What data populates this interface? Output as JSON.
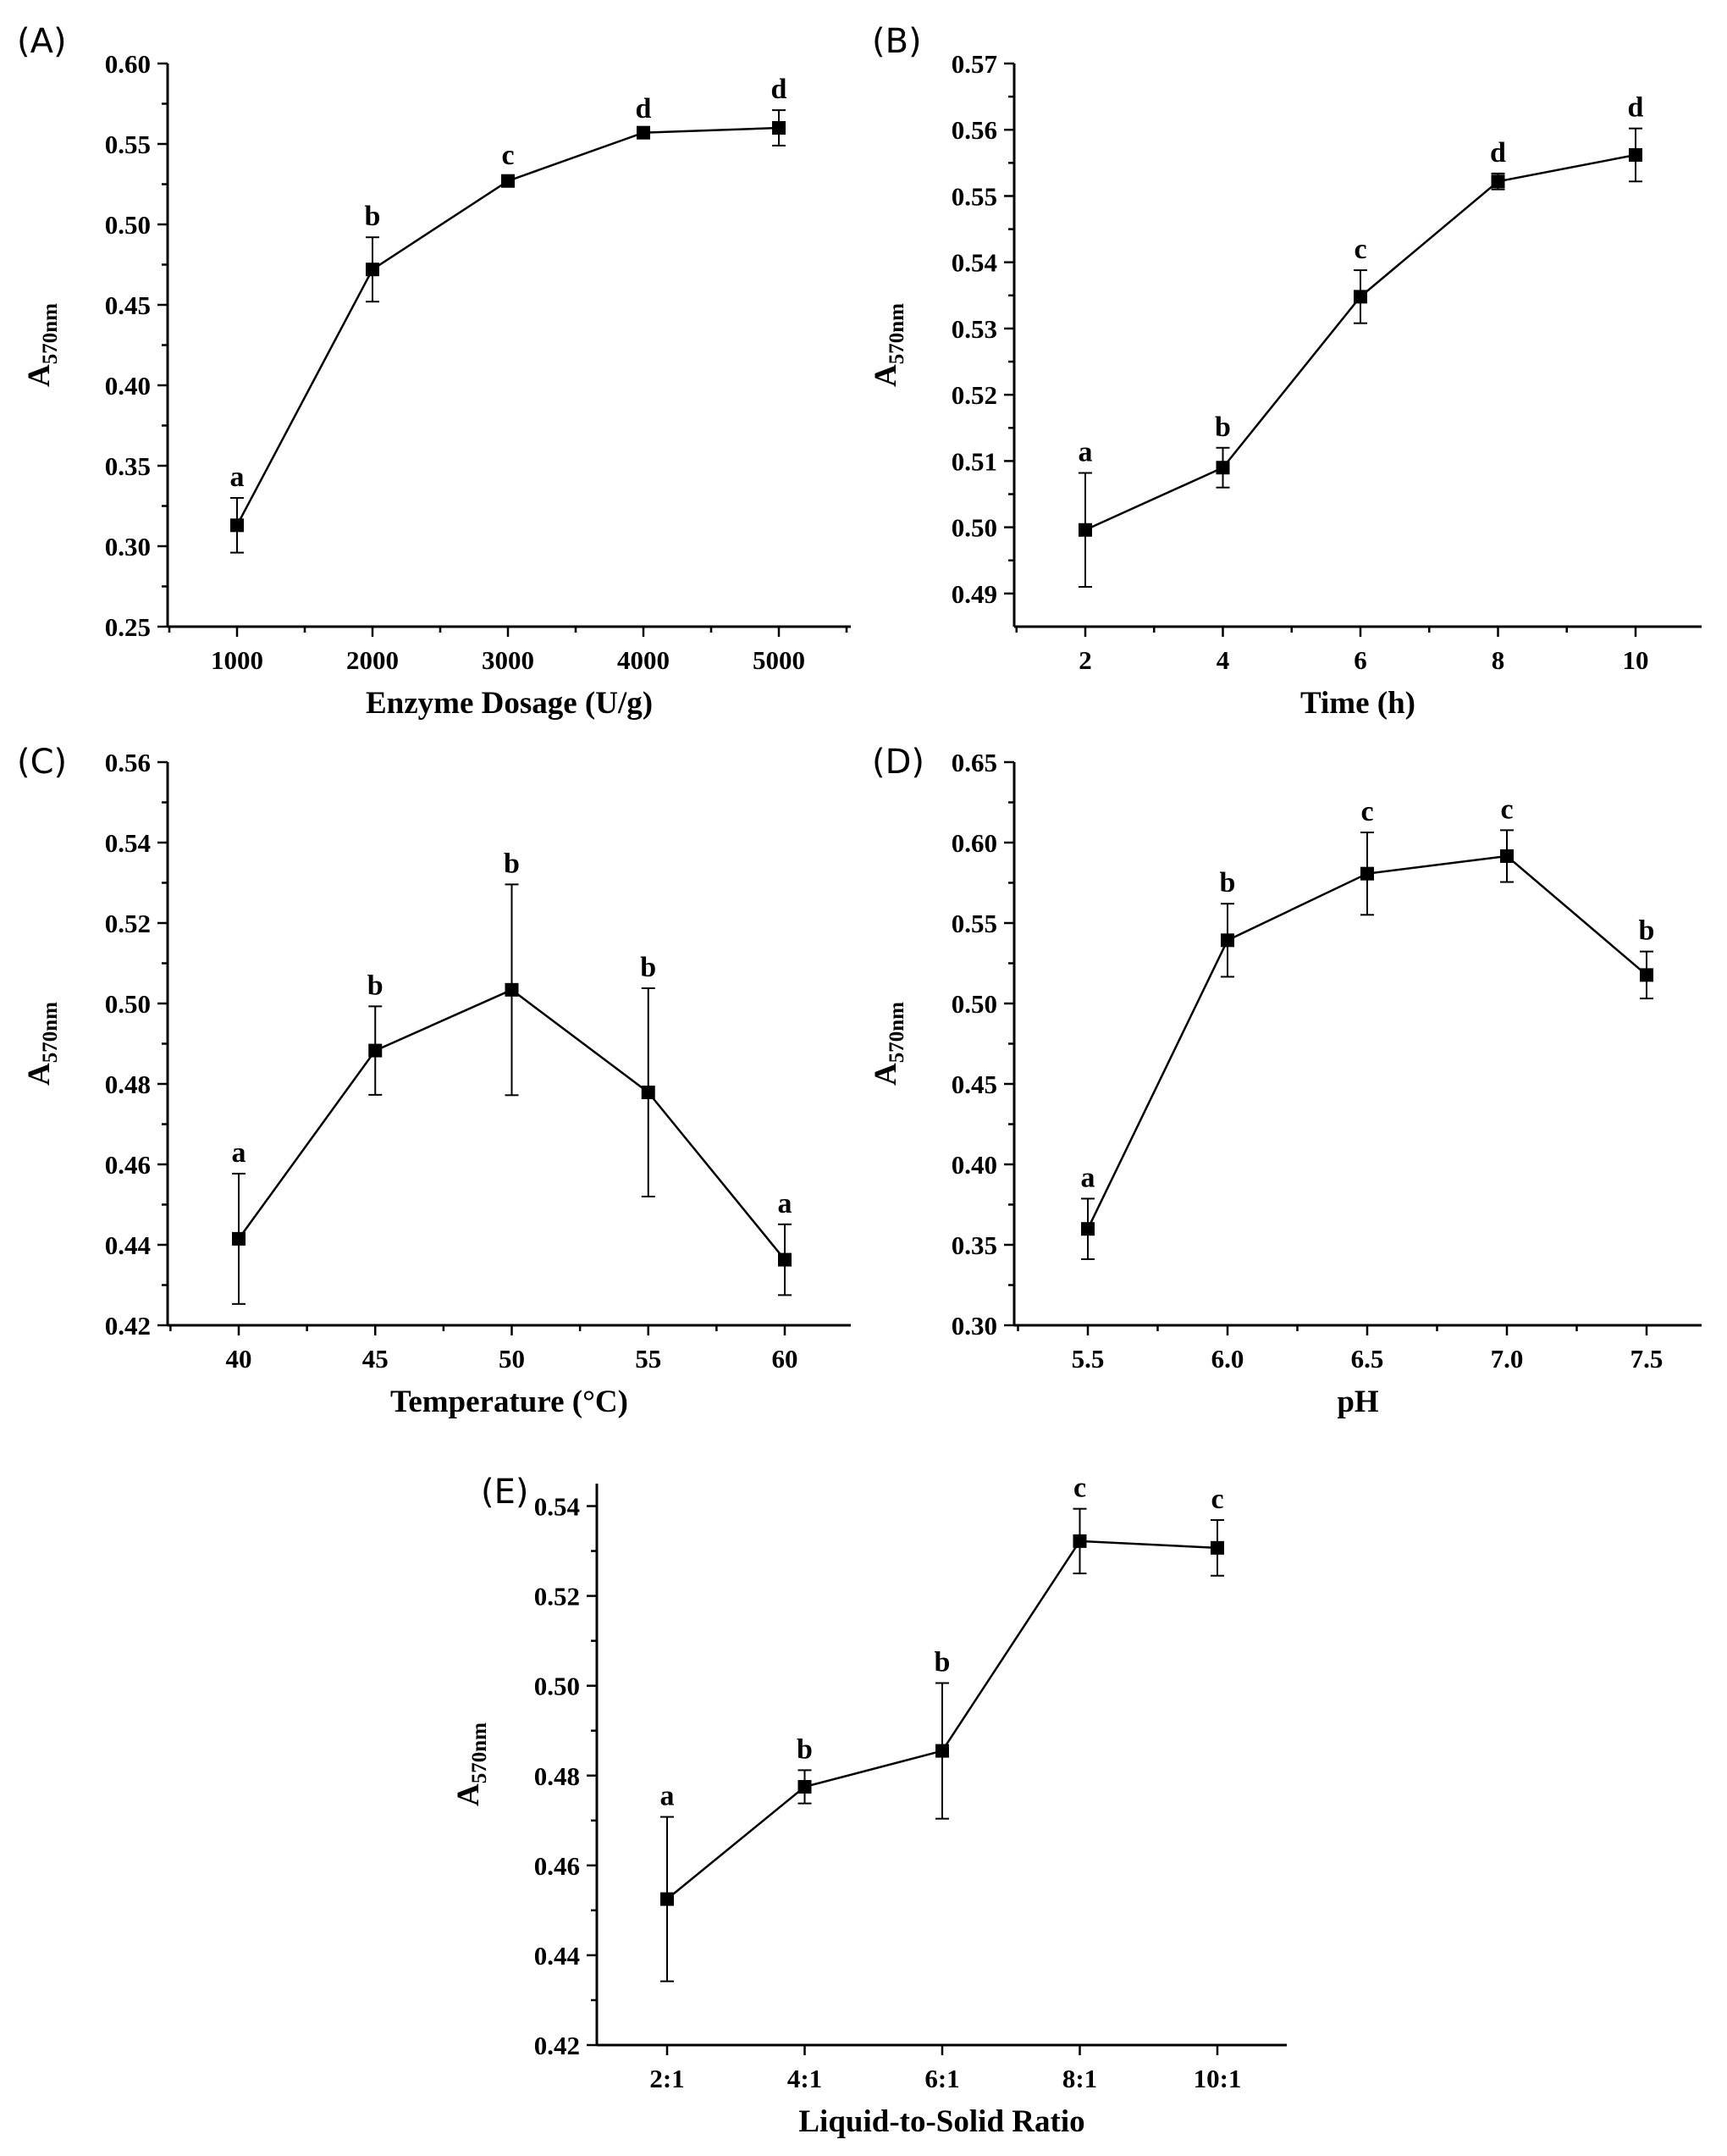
{
  "figure": {
    "y_label": {
      "main": "A",
      "sub": "570nm"
    }
  },
  "chart_data": [
    {
      "panel": "(A)",
      "type": "line",
      "xlabel": "Enzyme Dosage (U/g)",
      "ylabel": "A570nm",
      "categories": [
        "1000",
        "2000",
        "3000",
        "4000",
        "5000"
      ],
      "values": [
        0.313,
        0.472,
        0.527,
        0.557,
        0.56
      ],
      "errors": [
        0.017,
        0.02,
        0.003,
        0.002,
        0.011
      ],
      "significance": [
        "a",
        "b",
        "c",
        "d",
        "d"
      ],
      "ylim": [
        0.25,
        0.6
      ],
      "yticks": [
        "0.25",
        "0.30",
        "0.35",
        "0.40",
        "0.45",
        "0.50",
        "0.55",
        "0.60"
      ],
      "ytick_step": 0.05,
      "minor_x_ticks": true
    },
    {
      "panel": "(B)",
      "type": "line",
      "xlabel": "Time (h)",
      "ylabel": "A570nm",
      "categories": [
        "2",
        "4",
        "6",
        "8",
        "10"
      ],
      "values": [
        0.4996,
        0.509,
        0.5348,
        0.5522,
        0.5562
      ],
      "errors": [
        0.0086,
        0.003,
        0.004,
        0.0012,
        0.004
      ],
      "significance": [
        "a",
        "b",
        "c",
        "d",
        "d"
      ],
      "ylim": [
        0.485,
        0.57
      ],
      "yticks": [
        "0.49",
        "0.50",
        "0.51",
        "0.52",
        "0.53",
        "0.54",
        "0.55",
        "0.56",
        "0.57"
      ],
      "ytick_step": 0.01,
      "minor_x_ticks": true
    },
    {
      "panel": "(C)",
      "type": "line",
      "xlabel": "Temperature (°C)",
      "ylabel": "A570nm",
      "categories": [
        "40",
        "45",
        "50",
        "55",
        "60"
      ],
      "values": [
        0.4415,
        0.4883,
        0.5034,
        0.4779,
        0.4363
      ],
      "errors": [
        0.0162,
        0.011,
        0.0262,
        0.0259,
        0.0088
      ],
      "significance": [
        "a",
        "b",
        "b",
        "b",
        "a"
      ],
      "ylim": [
        0.42,
        0.56
      ],
      "yticks": [
        "0.42",
        "0.44",
        "0.46",
        "0.48",
        "0.50",
        "0.52",
        "0.54",
        "0.56"
      ],
      "ytick_step": 0.02,
      "minor_x_ticks": true
    },
    {
      "panel": "(D)",
      "type": "line",
      "xlabel": "pH",
      "ylabel": "A570nm",
      "categories": [
        "5.5",
        "6.0",
        "6.5",
        "7.0",
        "7.5"
      ],
      "values": [
        0.3599,
        0.5393,
        0.5807,
        0.5916,
        0.5177
      ],
      "errors": [
        0.0188,
        0.0227,
        0.0256,
        0.0161,
        0.0146
      ],
      "significance": [
        "a",
        "b",
        "c",
        "c",
        "b"
      ],
      "ylim": [
        0.3,
        0.65
      ],
      "yticks": [
        "0.30",
        "0.35",
        "0.40",
        "0.45",
        "0.50",
        "0.55",
        "0.60",
        "0.65"
      ],
      "ytick_step": 0.05,
      "minor_x_ticks": true
    },
    {
      "panel": "(E)",
      "type": "line",
      "xlabel": "Liquid-to-Solid Ratio",
      "ylabel": "A570nm",
      "categories": [
        "2:1",
        "4:1",
        "6:1",
        "8:1",
        "10:1"
      ],
      "values": [
        0.4525,
        0.4775,
        0.4855,
        0.5322,
        0.5307
      ],
      "errors": [
        0.0183,
        0.0037,
        0.0151,
        0.0072,
        0.0062
      ],
      "significance": [
        "a",
        "b",
        "b",
        "c",
        "c"
      ],
      "ylim": [
        0.42,
        0.545
      ],
      "yticks": [
        "0.42",
        "0.44",
        "0.46",
        "0.48",
        "0.50",
        "0.52",
        "0.54"
      ],
      "ytick_step": 0.02,
      "minor_x_ticks": false
    }
  ]
}
